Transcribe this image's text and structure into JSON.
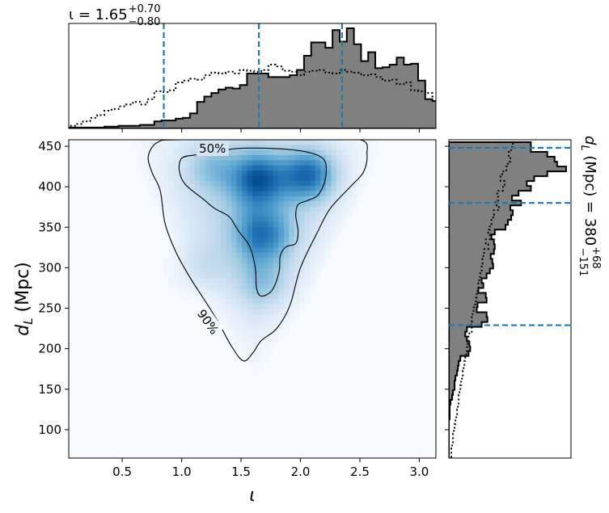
{
  "chart_data": {
    "type": "heatmap",
    "xlabel": "ι",
    "ylabel": "d_L (Mpc)",
    "xlim": [
      0.05,
      3.14
    ],
    "ylim": [
      65,
      458
    ],
    "xticks": [
      0.5,
      1.0,
      1.5,
      2.0,
      2.5,
      3.0
    ],
    "xtick_labels": [
      "0.5",
      "1.0",
      "1.5",
      "2.0",
      "2.5",
      "3.0"
    ],
    "yticks": [
      100,
      150,
      200,
      250,
      300,
      350,
      400,
      450
    ],
    "ytick_labels": [
      "100",
      "150",
      "200",
      "250",
      "300",
      "350",
      "400",
      "450"
    ],
    "grid": false,
    "colormap": "Blues",
    "density_peaks": [
      {
        "x": 1.65,
        "y": 410,
        "w": 0.22
      },
      {
        "x": 2.07,
        "y": 415,
        "w": 0.25
      },
      {
        "x": 1.25,
        "y": 425,
        "w": 0.1
      },
      {
        "x": 1.7,
        "y": 280,
        "w": 0.08
      },
      {
        "x": 1.7,
        "y": 340,
        "w": 0.16
      },
      {
        "x": 1.15,
        "y": 300,
        "w": 0.06
      }
    ],
    "contours": [
      {
        "level": "50%",
        "label": "50%",
        "points": [
          [
            1.2,
            440
          ],
          [
            1.45,
            447
          ],
          [
            1.8,
            447
          ],
          [
            2.05,
            443
          ],
          [
            2.2,
            433
          ],
          [
            2.21,
            410
          ],
          [
            2.15,
            390
          ],
          [
            2.06,
            383
          ],
          [
            1.98,
            378
          ],
          [
            1.96,
            365
          ],
          [
            1.98,
            345
          ],
          [
            1.96,
            330
          ],
          [
            1.88,
            326
          ],
          [
            1.83,
            315
          ],
          [
            1.82,
            295
          ],
          [
            1.76,
            272
          ],
          [
            1.67,
            265
          ],
          [
            1.63,
            275
          ],
          [
            1.62,
            300
          ],
          [
            1.57,
            327
          ],
          [
            1.48,
            345
          ],
          [
            1.4,
            363
          ],
          [
            1.28,
            373
          ],
          [
            1.18,
            385
          ],
          [
            1.03,
            403
          ],
          [
            0.98,
            420
          ],
          [
            1.0,
            435
          ],
          [
            1.1,
            439
          ]
        ]
      },
      {
        "level": "90%",
        "label": "90%",
        "points": [
          [
            0.8,
            455
          ],
          [
            1.0,
            458
          ],
          [
            2.0,
            458
          ],
          [
            2.5,
            458
          ],
          [
            2.56,
            440
          ],
          [
            2.53,
            418
          ],
          [
            2.42,
            400
          ],
          [
            2.25,
            373
          ],
          [
            2.14,
            343
          ],
          [
            2.0,
            300
          ],
          [
            1.91,
            253
          ],
          [
            1.8,
            225
          ],
          [
            1.67,
            210
          ],
          [
            1.6,
            195
          ],
          [
            1.52,
            185
          ],
          [
            1.42,
            203
          ],
          [
            1.3,
            235
          ],
          [
            1.18,
            263
          ],
          [
            1.07,
            288
          ],
          [
            0.95,
            320
          ],
          [
            0.86,
            355
          ],
          [
            0.82,
            395
          ],
          [
            0.75,
            418
          ],
          [
            0.72,
            438
          ]
        ]
      }
    ],
    "marginals": {
      "top": {
        "title": "ι = 1.65",
        "title_sup": "+0.70",
        "title_sub": "−0.80",
        "median": 1.65,
        "lower": 0.85,
        "upper": 2.35,
        "bin_edges_start": 0.05,
        "bin_width": 0.06,
        "posterior_density": [
          1,
          1,
          1,
          1,
          1,
          2,
          2,
          3,
          3,
          3,
          4,
          4,
          8,
          9,
          9,
          11,
          12,
          17,
          30,
          36,
          40,
          44,
          46,
          45,
          49,
          62,
          62,
          62,
          58,
          58,
          58,
          60,
          66,
          82,
          97,
          97,
          91,
          111,
          98,
          113,
          95,
          76,
          86,
          68,
          69,
          72,
          80,
          72,
          73,
          54,
          33,
          31,
          24,
          16,
          12,
          10,
          9,
          8,
          5,
          4,
          3,
          2,
          1,
          2,
          1,
          1,
          1,
          1,
          1,
          1
        ],
        "prior_density": [
          3,
          5,
          8,
          12,
          15,
          20,
          22,
          25,
          27,
          30,
          27,
          33,
          42,
          41,
          43,
          52,
          54,
          56,
          55,
          60,
          63,
          62,
          64,
          62,
          66,
          65,
          64,
          66,
          72,
          70,
          65,
          64,
          60,
          64,
          65,
          66,
          63,
          62,
          66,
          64,
          63,
          60,
          61,
          58,
          54,
          55,
          50,
          52,
          43,
          42,
          40,
          36,
          35,
          33,
          31,
          30,
          28,
          27,
          25,
          21,
          18,
          15,
          12,
          10,
          8,
          6,
          5,
          4,
          3,
          2
        ]
      },
      "right": {
        "title": "d_L (Mpc) = 380",
        "title_sup": "+68",
        "title_sub": "−151",
        "median": 380,
        "lower": 229,
        "upper": 448,
        "bin_edges_start": 455,
        "bin_width": 6,
        "posterior_density": [
          100,
          100,
          120,
          129,
          132,
          143,
          120,
          104,
          95,
          100,
          85,
          77,
          88,
          75,
          78,
          76,
          72,
          69,
          56,
          52,
          55,
          56,
          55,
          51,
          53,
          54,
          50,
          46,
          40,
          42,
          36,
          45,
          46,
          35,
          34,
          46,
          47,
          40,
          22,
          20,
          22,
          25,
          26,
          24,
          14,
          12,
          11,
          10,
          8,
          7,
          7,
          5,
          4,
          2,
          1,
          1,
          1,
          0,
          0,
          0,
          0,
          0,
          0,
          0,
          0,
          0,
          0,
          0
        ],
        "prior_density": [
          78,
          76,
          73,
          75,
          72,
          70,
          65,
          63,
          68,
          66,
          59,
          60,
          57,
          61,
          55,
          54,
          52,
          50,
          48,
          50,
          45,
          48,
          43,
          42,
          41,
          40,
          40,
          38,
          37,
          36,
          35,
          34,
          33,
          32,
          30,
          29,
          28,
          27,
          28,
          25,
          24,
          23,
          22,
          21,
          20,
          19,
          18,
          17,
          16,
          15,
          14,
          13,
          12,
          12,
          11,
          10,
          9,
          8,
          7,
          6,
          5,
          5,
          4,
          3,
          3,
          2,
          2,
          1
        ]
      }
    }
  }
}
